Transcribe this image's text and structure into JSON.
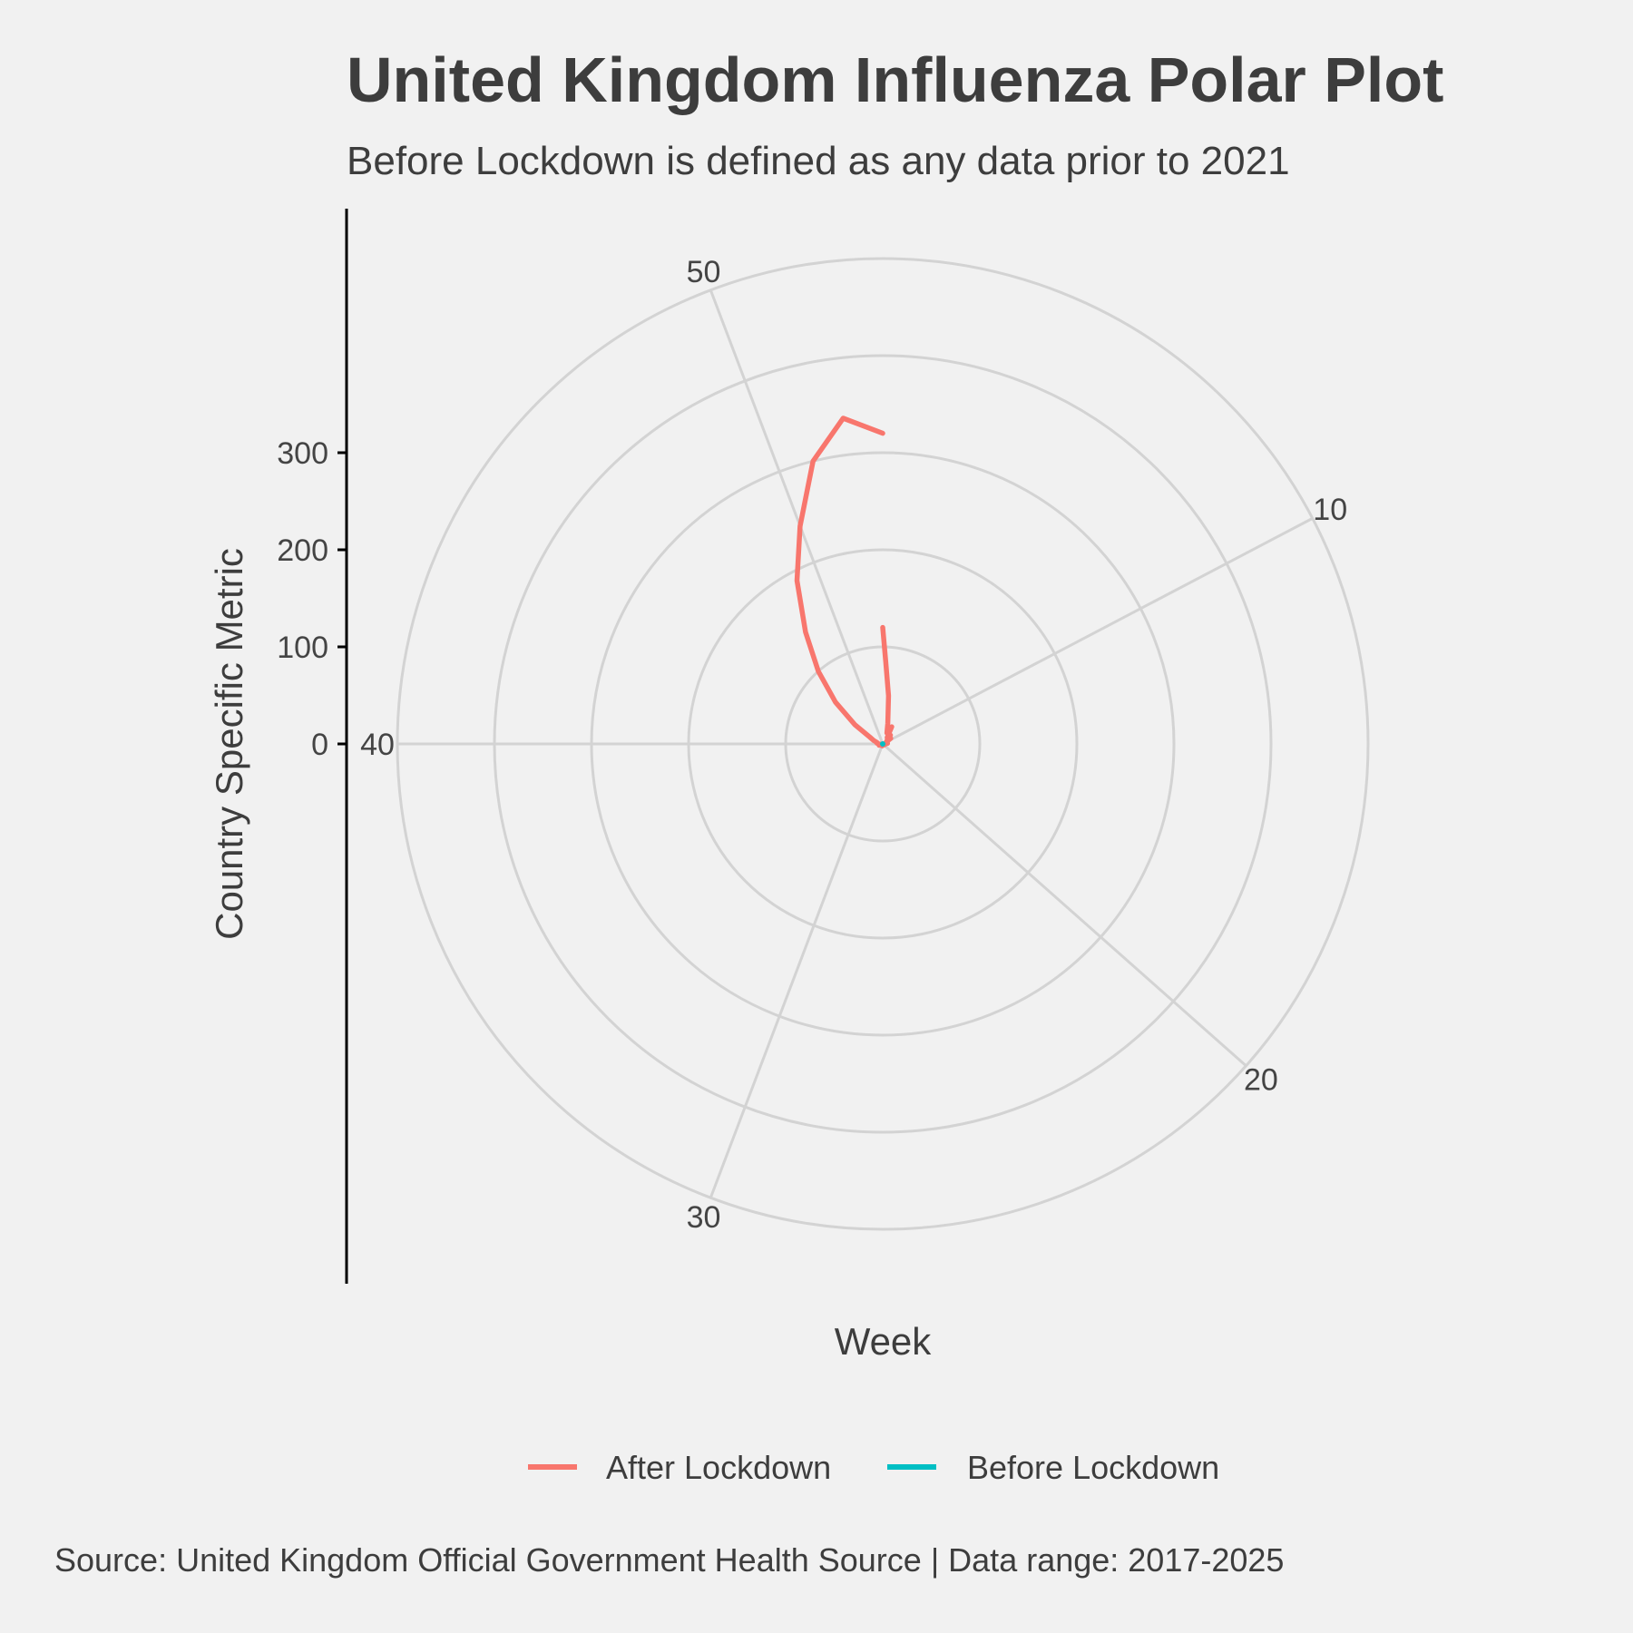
{
  "chart_data": {
    "type": "line",
    "coord": "polar",
    "title": "United Kingdom Influenza Polar Plot",
    "subtitle": "Before Lockdown is defined as any data prior to 2021",
    "xlabel": "Week",
    "ylabel": "Country Specific Metric",
    "caption": "Source: United Kingdom Official Government Health Source | Data range: 2017-2025",
    "x_ticks": [
      10,
      20,
      30,
      40,
      50
    ],
    "y_ticks": [
      0,
      100,
      200,
      300
    ],
    "xlim": [
      1,
      53
    ],
    "ylim": [
      0,
      500
    ],
    "grid": true,
    "legend_position": "bottom",
    "colors": {
      "After Lockdown": "#f8766d",
      "Before Lockdown": "#00bfc4",
      "grid": "#d3d3d3",
      "background": "#f1f1f1"
    },
    "series": [
      {
        "name": "After Lockdown",
        "x": [
          1,
          1.3,
          2,
          3,
          4,
          5,
          6,
          7,
          8,
          9,
          10,
          11,
          12,
          13,
          14,
          15,
          16,
          17,
          18,
          19,
          20,
          21,
          22,
          23,
          24,
          25,
          26,
          27,
          28,
          29,
          30,
          31,
          32,
          33,
          34,
          35,
          36,
          37,
          38,
          39,
          40,
          41,
          42,
          43,
          44,
          45,
          46,
          47,
          48,
          49,
          50,
          51,
          52,
          53
        ],
        "y": [
          120,
          85,
          50,
          22,
          12,
          20,
          8,
          12,
          6,
          10,
          4,
          4,
          3,
          5,
          3,
          2,
          1,
          1,
          2,
          1,
          1,
          1,
          0,
          0,
          1,
          1,
          0,
          0,
          1,
          2,
          2,
          0,
          2,
          1,
          1,
          2,
          2,
          4,
          3,
          2,
          4,
          6,
          6,
          10,
          15,
          35,
          65,
          100,
          140,
          190,
          240,
          300,
          338,
          320
        ]
      },
      {
        "name": "Before Lockdown",
        "x": [
          1,
          10,
          20,
          30,
          40,
          50
        ],
        "y": [
          0,
          0,
          0,
          0,
          0,
          0
        ]
      }
    ]
  }
}
